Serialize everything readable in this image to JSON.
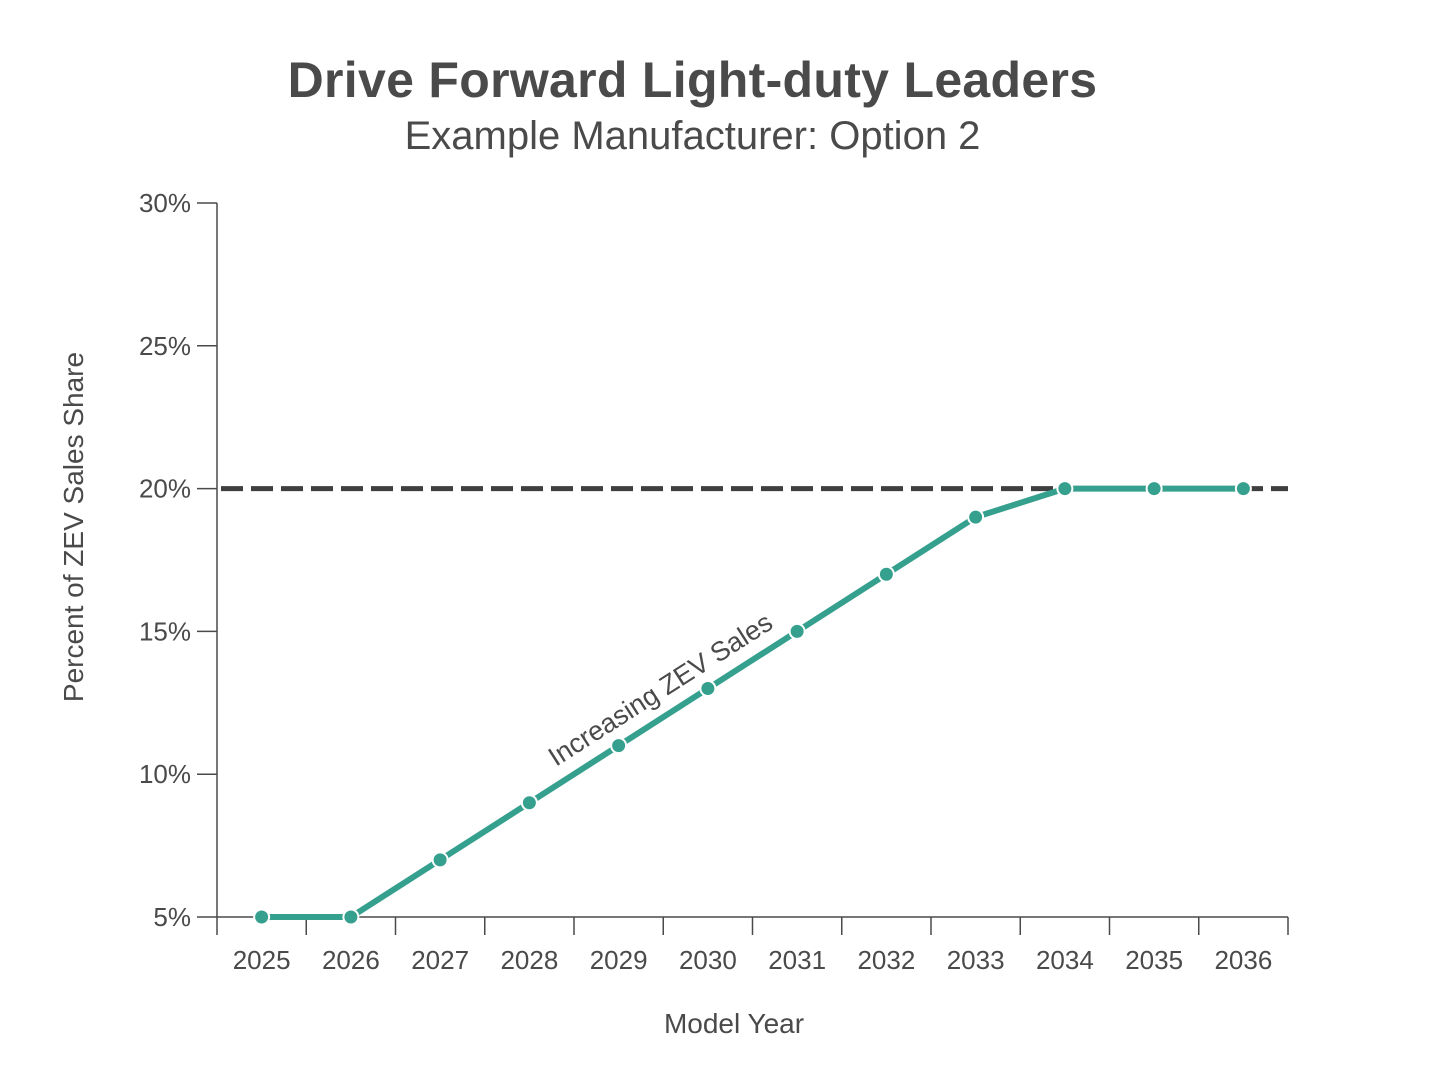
{
  "chart_data": {
    "type": "line",
    "title": "Drive Forward Light-duty Leaders",
    "subtitle": "Example Manufacturer: Option 2",
    "xlabel": "Model Year",
    "ylabel": "Percent of ZEV Sales Share",
    "categories": [
      "2025",
      "2026",
      "2027",
      "2028",
      "2029",
      "2030",
      "2031",
      "2032",
      "2033",
      "2034",
      "2035",
      "2036"
    ],
    "series": [
      {
        "name": "Increasing ZEV Sales",
        "color": "#35a08e",
        "values": [
          5,
          5,
          7,
          9,
          11,
          13,
          15,
          17,
          19,
          20,
          20,
          20
        ]
      }
    ],
    "reference_line": {
      "value": 20,
      "style": "dashed",
      "color": "#3f3f42"
    },
    "ylim": [
      5,
      30
    ],
    "yticks": [
      5,
      10,
      15,
      20,
      25,
      30
    ],
    "ytick_labels": [
      "5%",
      "10%",
      "15%",
      "20%",
      "25%",
      "30%"
    ],
    "annotation": "Increasing ZEV Sales",
    "grid": false
  }
}
